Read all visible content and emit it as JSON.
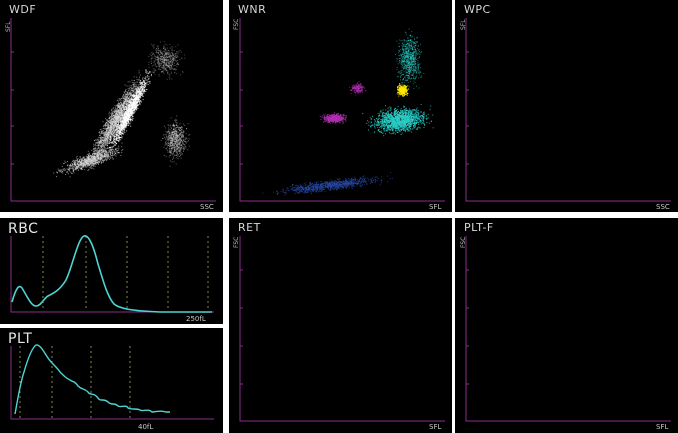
{
  "panels": {
    "wdf": {
      "title": "WDF",
      "ylabel": "SFL",
      "xlabel": "SSC"
    },
    "wnr": {
      "title": "WNR",
      "ylabel": "FSC",
      "xlabel": "SFL"
    },
    "wpc": {
      "title": "WPC",
      "ylabel": "SFL",
      "xlabel": "SSC"
    },
    "rbc": {
      "title": "RBC",
      "xlabel": "250fL"
    },
    "plt": {
      "title": "PLT",
      "xlabel": "40fL"
    },
    "ret": {
      "title": "RET",
      "ylabel": "FSC",
      "xlabel": "SFL"
    },
    "pltf": {
      "title": "PLT-F",
      "ylabel": "FSC",
      "xlabel": "SFL"
    }
  },
  "colors": {
    "axis": "#8a2e8a",
    "histogram": "#4fd4d4",
    "dashed": "#7c8c4c",
    "neutrophil": "#2ad0c8",
    "eosinophil": "#ffe800",
    "basophil": "#b030b0",
    "ghost": "#2a4aa8",
    "scatter": "#d8d8d8"
  }
}
